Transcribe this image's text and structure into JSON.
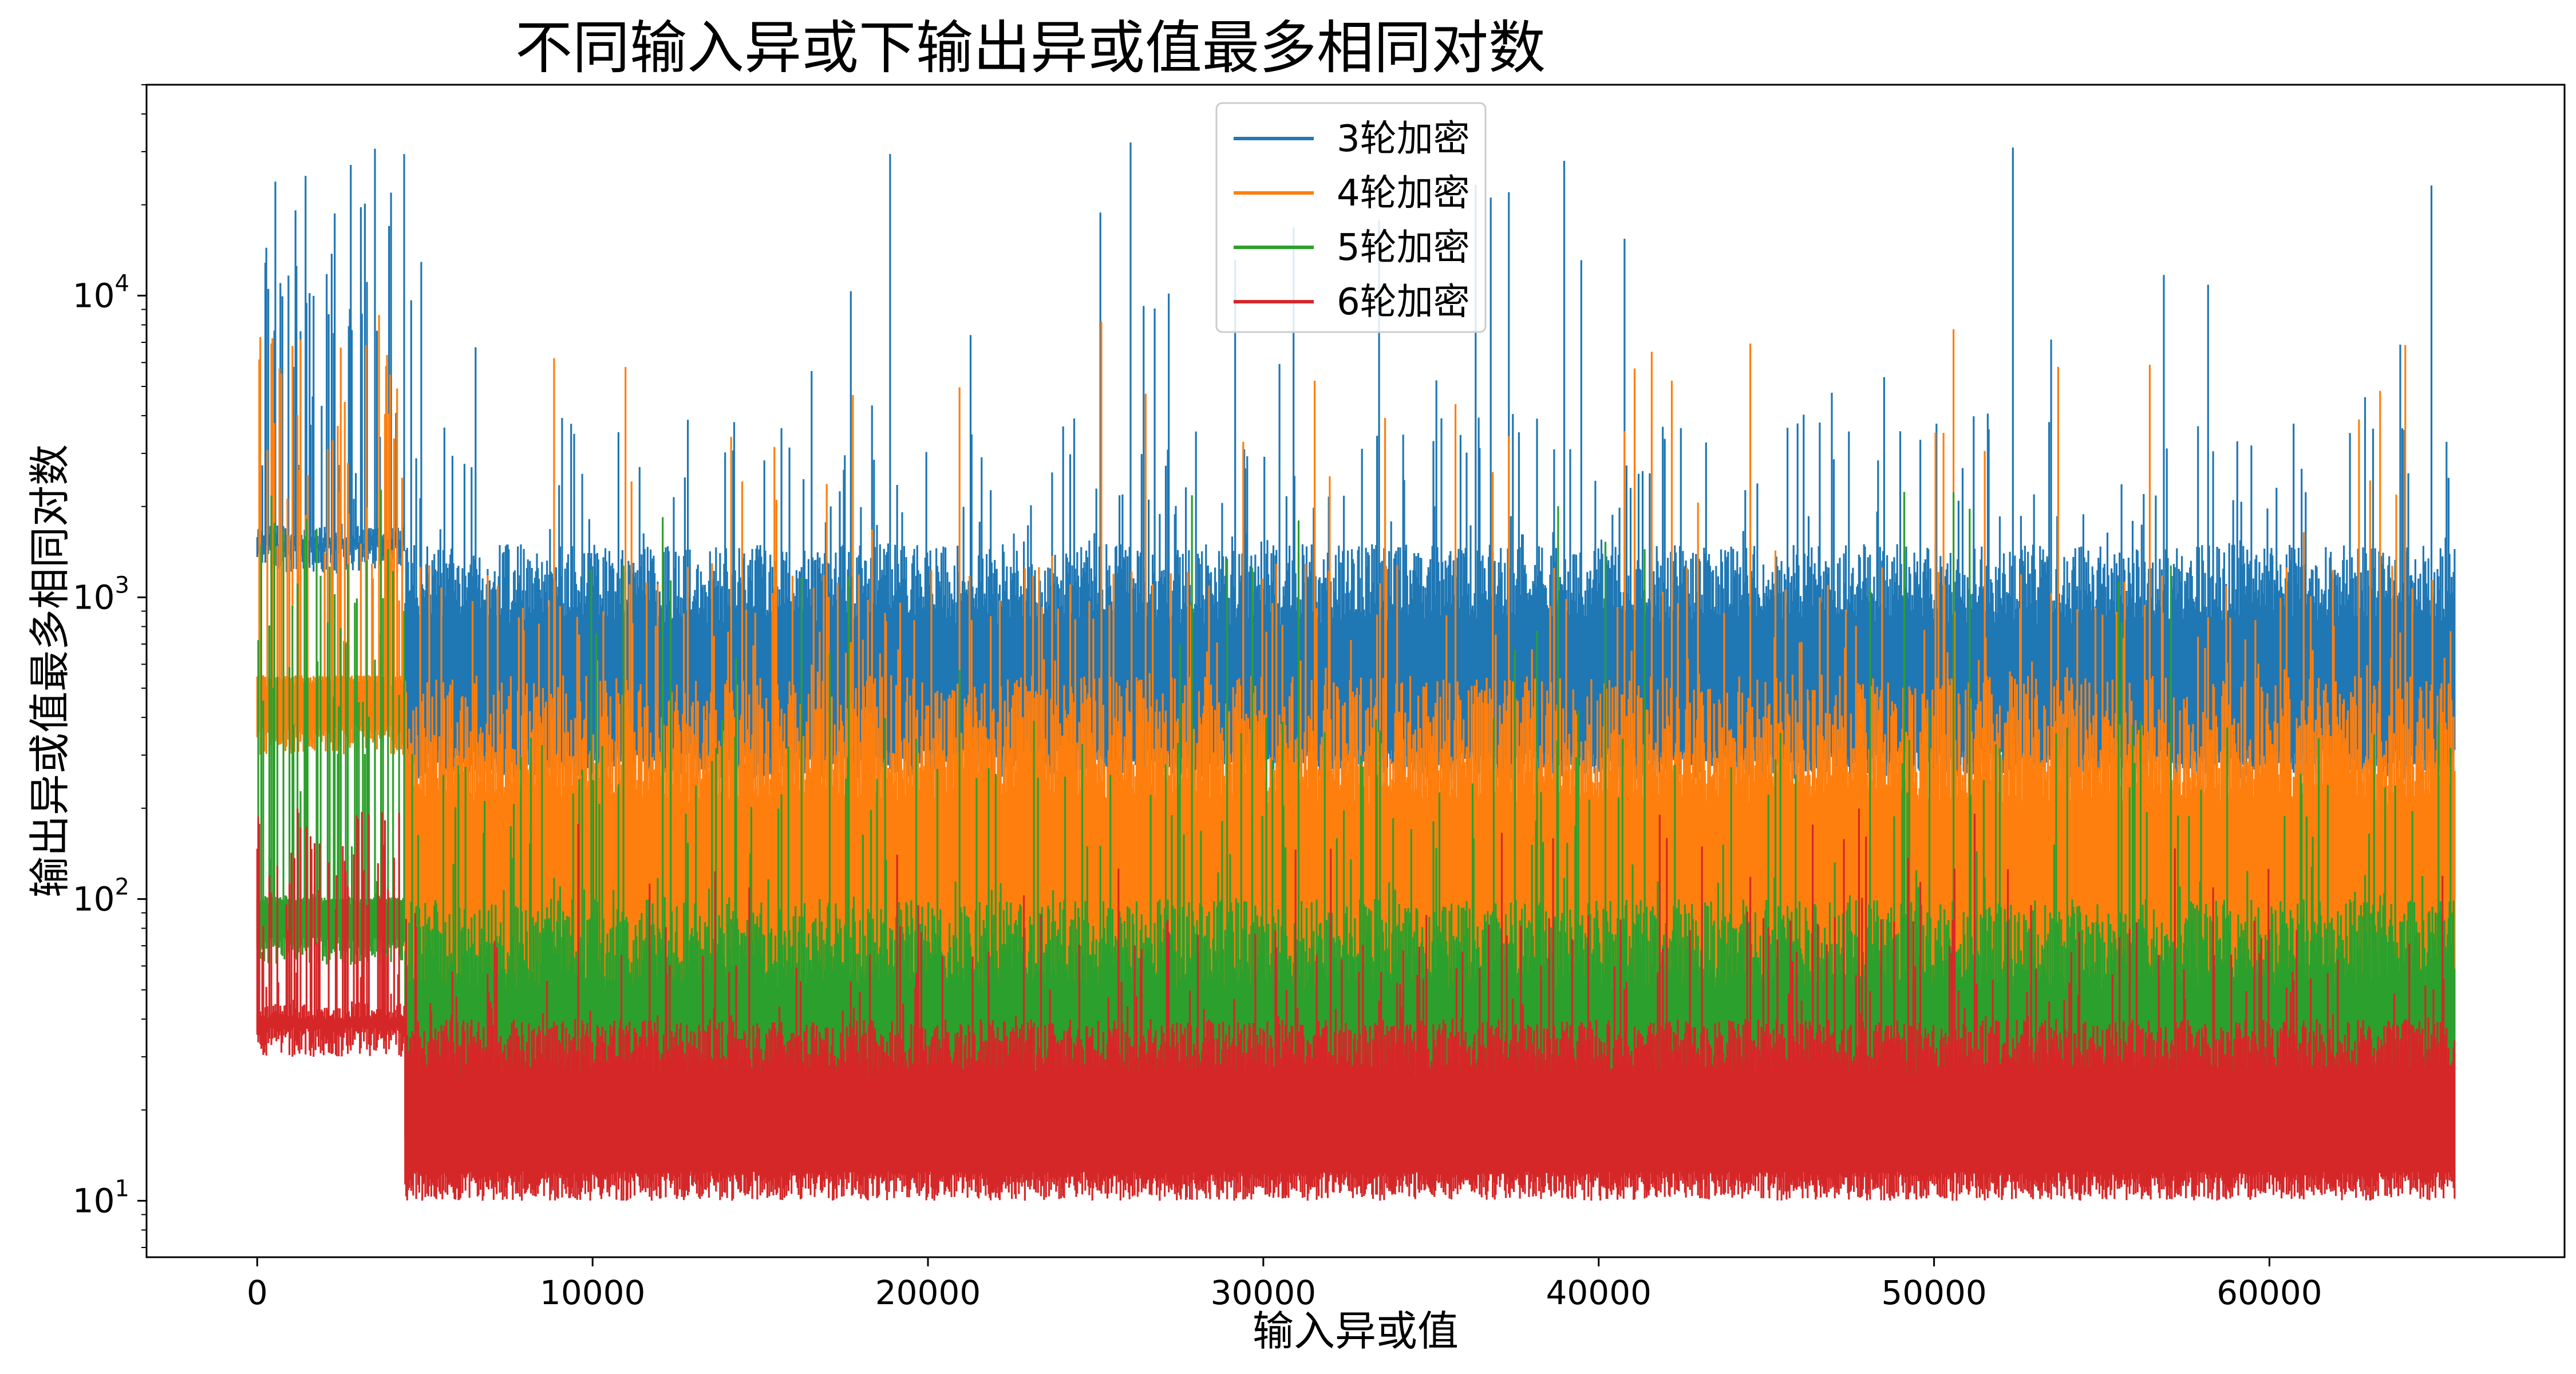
{
  "chart_data": {
    "type": "line",
    "title": "不同输入异或下输出异或值最多相同对数",
    "xlabel": "输入异或值",
    "ylabel": "输出异或值最多相同对数",
    "yscale": "log",
    "xlim": [
      -3300,
      68800
    ],
    "ylim": [
      6.5,
      50000
    ],
    "x_ticks": [
      0,
      10000,
      20000,
      30000,
      40000,
      50000,
      60000
    ],
    "x_tick_labels": [
      "0",
      "10000",
      "20000",
      "30000",
      "40000",
      "50000",
      "60000"
    ],
    "y_ticks": [
      10,
      100,
      1000,
      10000
    ],
    "y_tick_labels": [
      {
        "base": "10",
        "exp": "1"
      },
      {
        "base": "10",
        "exp": "2"
      },
      {
        "base": "10",
        "exp": "3"
      },
      {
        "base": "10",
        "exp": "4"
      }
    ],
    "x_range": [
      1,
      65535
    ],
    "grid": false,
    "legend": "top-center",
    "series": [
      {
        "name": "3轮加密",
        "color": "#1f77b4",
        "floor": 250,
        "band_top": 1500,
        "peak_level": 4100,
        "max": 32768,
        "early_min": 1200
      },
      {
        "name": "4轮加密",
        "color": "#ff7f0e",
        "floor": 40,
        "band_top": 550,
        "peak_level": 1300,
        "max": 9000,
        "early_min": 300
      },
      {
        "name": "5轮加密",
        "color": "#2ca02c",
        "floor": 14,
        "band_top": 100,
        "peak_level": 400,
        "max": 2300,
        "early_min": 60
      },
      {
        "name": "6轮加密",
        "color": "#d62728",
        "floor": 10,
        "band_top": 40,
        "peak_level": 90,
        "max": 200,
        "early_min": 30
      }
    ]
  }
}
